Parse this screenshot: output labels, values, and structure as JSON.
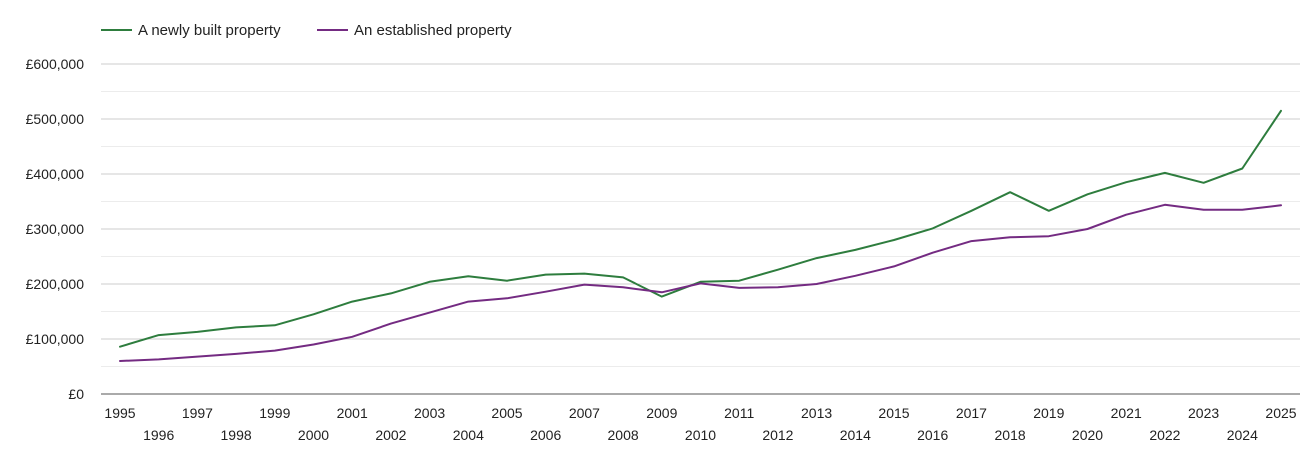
{
  "chart_data": {
    "type": "line",
    "title": "",
    "xlabel": "",
    "ylabel": "",
    "ylim": [
      0,
      600000
    ],
    "y_ticks": [
      0,
      100000,
      200000,
      300000,
      400000,
      500000,
      600000
    ],
    "y_tick_labels": [
      "£0",
      "£100,000",
      "£200,000",
      "£300,000",
      "£400,000",
      "£500,000",
      "£600,000"
    ],
    "x": [
      1995,
      1996,
      1997,
      1998,
      1999,
      2000,
      2001,
      2002,
      2003,
      2004,
      2005,
      2006,
      2007,
      2008,
      2009,
      2010,
      2011,
      2012,
      2013,
      2014,
      2015,
      2016,
      2017,
      2018,
      2019,
      2020,
      2021,
      2022,
      2023,
      2024,
      2025
    ],
    "grid": true,
    "legend_position": "top-left",
    "series": [
      {
        "name": "A newly built property",
        "color": "#2e7d3e",
        "values": [
          86000,
          107000,
          113000,
          121000,
          125000,
          145000,
          168000,
          183000,
          204000,
          214000,
          206000,
          217000,
          219000,
          212000,
          177000,
          204000,
          206000,
          226000,
          247000,
          262000,
          280000,
          301000,
          333000,
          367000,
          333000,
          363000,
          385000,
          402000,
          384000,
          410000,
          515000
        ]
      },
      {
        "name": "An established property",
        "color": "#742b82",
        "values": [
          60000,
          63000,
          68000,
          73000,
          79000,
          90000,
          104000,
          128000,
          148000,
          168000,
          174000,
          186000,
          199000,
          194000,
          185000,
          201000,
          193000,
          194000,
          200000,
          215000,
          232000,
          257000,
          278000,
          285000,
          287000,
          300000,
          326000,
          344000,
          335000,
          335000,
          343000
        ]
      }
    ]
  }
}
